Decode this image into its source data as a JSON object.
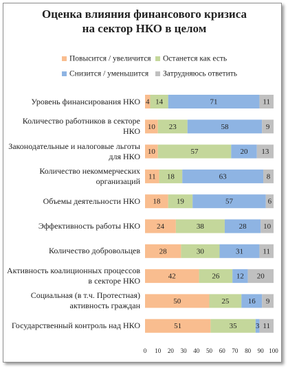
{
  "chart_data": {
    "type": "stacked-bar-horizontal",
    "title": "Оценка влияния финансового кризиса на сектор НКО в целом",
    "categories": [
      "Уровень финансирования НКО",
      "Количество работников в секторе НКО",
      "Законодательные и налоговые льготы для НКО",
      "Количество некоммерческих организаций",
      "Объемы деятельности НКО",
      "Эффективность работы НКО",
      "Количество добровольцев",
      "Активность коалиционных процессов в секторе НКО",
      "Социальная (в т.ч. Протестная) активность граждан",
      "Государственный контроль над НКО"
    ],
    "series": [
      {
        "name": "Повысится / увеличится",
        "color": "#f9bd8f",
        "values": [
          4,
          10,
          10,
          11,
          18,
          24,
          28,
          42,
          50,
          51
        ]
      },
      {
        "name": "Останется как есть",
        "color": "#c4d79b",
        "values": [
          14,
          23,
          57,
          18,
          19,
          38,
          30,
          26,
          25,
          35
        ]
      },
      {
        "name": "Снизится / уменьшится",
        "color": "#8eb4e3",
        "values": [
          71,
          58,
          20,
          63,
          57,
          28,
          31,
          12,
          16,
          3
        ]
      },
      {
        "name": "Затрудняюсь ответить",
        "color": "#c0c0c0",
        "values": [
          11,
          9,
          13,
          8,
          6,
          10,
          11,
          20,
          9,
          11
        ]
      }
    ],
    "xlim": [
      0,
      100
    ],
    "xticks": [
      0,
      10,
      20,
      30,
      40,
      50,
      60,
      70,
      80,
      90,
      100
    ]
  }
}
